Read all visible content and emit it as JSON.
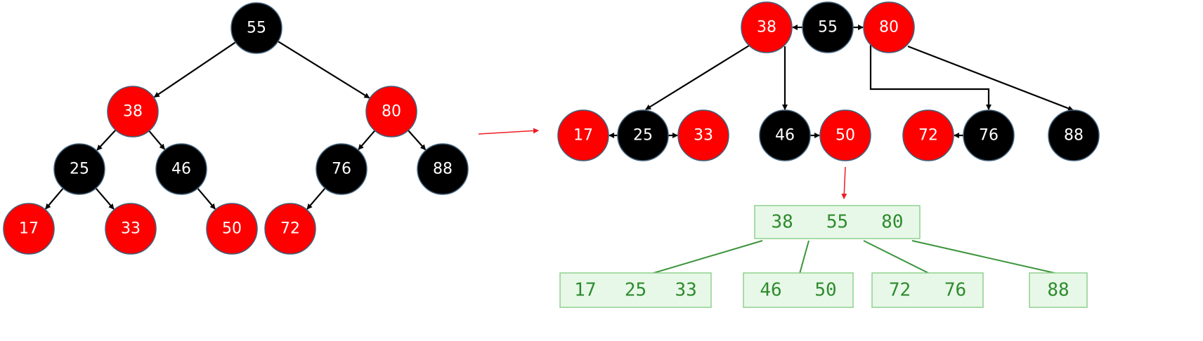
{
  "colors": {
    "red": "#ff0000",
    "black": "#000000",
    "node_border": "#41607a",
    "arrow_red": "#ee1c24",
    "btree_fill": "#e8f8e8",
    "btree_border": "#8fd08f",
    "btree_text": "#2e8b2e",
    "btree_line": "#3c943c"
  },
  "red_black_tree": {
    "nodes": [
      {
        "id": "n55",
        "value": "55",
        "color": "black"
      },
      {
        "id": "n38",
        "value": "38",
        "color": "red"
      },
      {
        "id": "n80",
        "value": "80",
        "color": "red"
      },
      {
        "id": "n25",
        "value": "25",
        "color": "black"
      },
      {
        "id": "n46",
        "value": "46",
        "color": "black"
      },
      {
        "id": "n76",
        "value": "76",
        "color": "black"
      },
      {
        "id": "n88",
        "value": "88",
        "color": "black"
      },
      {
        "id": "n17",
        "value": "17",
        "color": "red"
      },
      {
        "id": "n33",
        "value": "33",
        "color": "red"
      },
      {
        "id": "n50",
        "value": "50",
        "color": "red"
      },
      {
        "id": "n72",
        "value": "72",
        "color": "red"
      }
    ],
    "edges": [
      [
        "n55",
        "n38"
      ],
      [
        "n55",
        "n80"
      ],
      [
        "n38",
        "n25"
      ],
      [
        "n38",
        "n46"
      ],
      [
        "n80",
        "n76"
      ],
      [
        "n80",
        "n88"
      ],
      [
        "n25",
        "n17"
      ],
      [
        "n25",
        "n33"
      ],
      [
        "n46",
        "n50"
      ],
      [
        "n76",
        "n72"
      ]
    ]
  },
  "grouped_tree": {
    "nodes": [
      {
        "id": "g38",
        "value": "38",
        "color": "red"
      },
      {
        "id": "g55",
        "value": "55",
        "color": "black"
      },
      {
        "id": "g80",
        "value": "80",
        "color": "red"
      },
      {
        "id": "g17",
        "value": "17",
        "color": "red"
      },
      {
        "id": "g25",
        "value": "25",
        "color": "black"
      },
      {
        "id": "g33",
        "value": "33",
        "color": "red"
      },
      {
        "id": "g46",
        "value": "46",
        "color": "black"
      },
      {
        "id": "g50",
        "value": "50",
        "color": "red"
      },
      {
        "id": "g72",
        "value": "72",
        "color": "red"
      },
      {
        "id": "g76",
        "value": "76",
        "color": "black"
      },
      {
        "id": "g88",
        "value": "88",
        "color": "black"
      }
    ],
    "sibling_links": [
      [
        "g55",
        "g38"
      ],
      [
        "g55",
        "g80"
      ],
      [
        "g25",
        "g17"
      ],
      [
        "g25",
        "g33"
      ],
      [
        "g46",
        "g50"
      ],
      [
        "g76",
        "g72"
      ]
    ],
    "child_edges": [
      [
        "g38",
        "g25"
      ],
      [
        "g38",
        "g46"
      ],
      [
        "g80",
        "g76"
      ],
      [
        "g80",
        "g88"
      ]
    ]
  },
  "btree": {
    "root": [
      "38",
      "55",
      "80"
    ],
    "children": [
      [
        "17",
        "25",
        "33"
      ],
      [
        "46",
        "50"
      ],
      [
        "72",
        "76"
      ],
      [
        "88"
      ]
    ]
  }
}
